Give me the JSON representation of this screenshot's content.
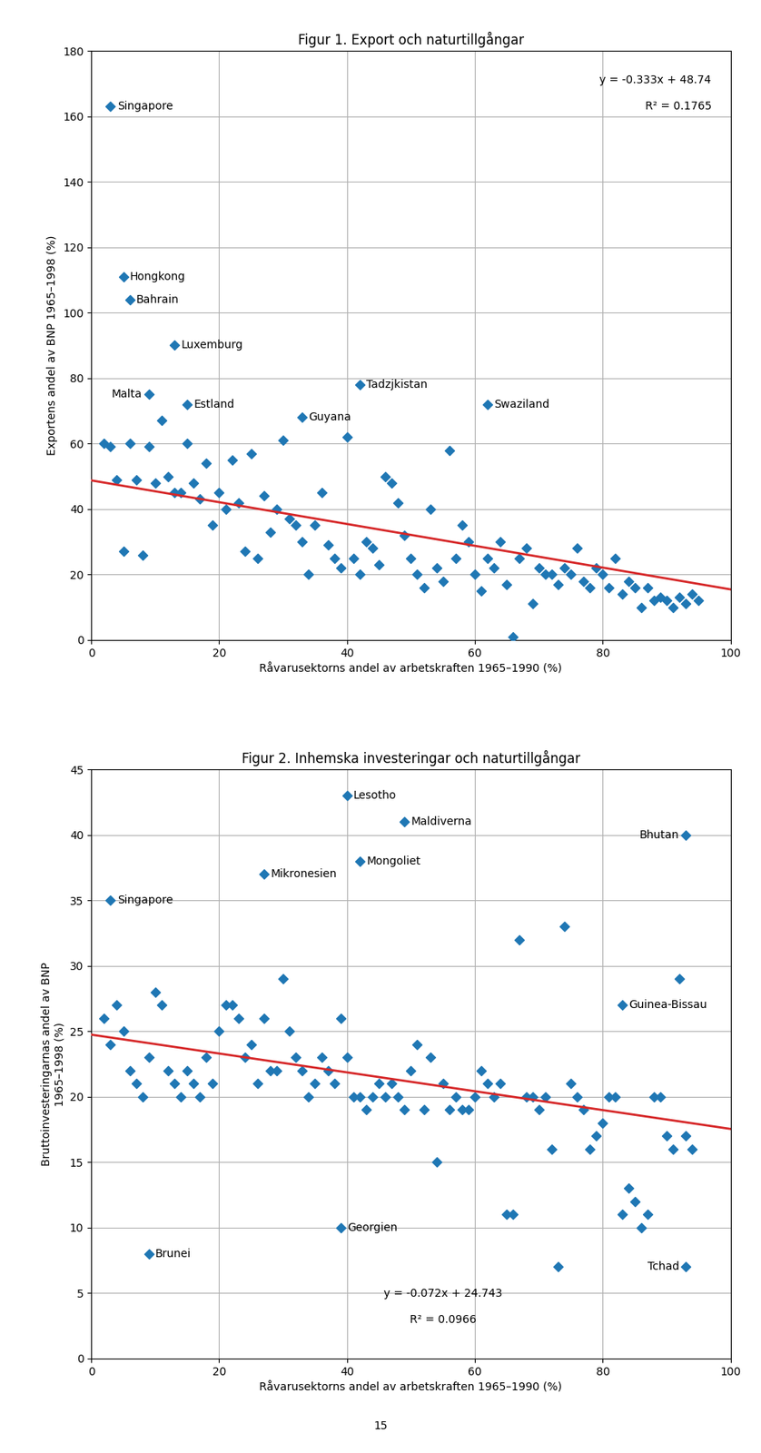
{
  "chart_data": [
    {
      "type": "scatter",
      "title": "Figur 1. Export och naturtillgångar",
      "x_label": "Råvarusektorns andel av arbetskraften 1965–1990 (%)",
      "y_label": "Exportens andel av BNP 1965–1998 (%)",
      "xlim": [
        0,
        100
      ],
      "ylim": [
        0,
        180
      ],
      "xticks": [
        0,
        20,
        40,
        60,
        80,
        100
      ],
      "yticks": [
        0,
        20,
        40,
        60,
        80,
        100,
        120,
        140,
        160,
        180
      ],
      "grid": true,
      "series": [
        {
          "type": "scatter",
          "color": "#1f77b4",
          "marker": "diamond",
          "x": [
            2,
            3,
            4,
            5,
            6,
            7,
            8,
            9,
            10,
            11,
            12,
            13,
            14,
            15,
            16,
            17,
            18,
            19,
            20,
            21,
            22,
            23,
            24,
            25,
            26,
            27,
            28,
            29,
            30,
            31,
            32,
            33,
            34,
            35,
            36,
            37,
            38,
            39,
            40,
            41,
            42,
            43,
            44,
            45,
            46,
            47,
            48,
            49,
            50,
            51,
            52,
            53,
            54,
            55,
            56,
            57,
            58,
            59,
            60,
            61,
            62,
            63,
            64,
            65,
            66,
            67,
            68,
            69,
            70,
            71,
            72,
            73,
            74,
            75,
            76,
            77,
            78,
            79,
            80,
            81,
            82,
            83,
            84,
            85,
            86,
            87,
            88,
            89,
            90,
            91,
            92,
            93,
            94,
            95
          ],
          "values": [
            60,
            59,
            49,
            27,
            60,
            49,
            26,
            59,
            48,
            67,
            50,
            45,
            45,
            60,
            48,
            43,
            54,
            35,
            45,
            40,
            55,
            42,
            27,
            57,
            25,
            44,
            33,
            40,
            61,
            37,
            35,
            30,
            20,
            35,
            45,
            29,
            25,
            22,
            62,
            25,
            20,
            30,
            28,
            23,
            50,
            48,
            42,
            32,
            25,
            20,
            16,
            40,
            22,
            18,
            58,
            25,
            35,
            30,
            20,
            15,
            25,
            22,
            30,
            17,
            1,
            25,
            28,
            11,
            22,
            20,
            20,
            17,
            22,
            20,
            28,
            18,
            16,
            22,
            20,
            16,
            25,
            14,
            18,
            16,
            10,
            16,
            12,
            13,
            12,
            10,
            13,
            11,
            14,
            12
          ]
        },
        {
          "type": "scatter",
          "color": "#1f77b4",
          "marker": "diamond",
          "x": [
            3,
            5,
            6,
            13,
            9,
            15,
            33,
            42,
            62
          ],
          "values": [
            163,
            111,
            104,
            90,
            75,
            72,
            68,
            78,
            72
          ],
          "point_labels": [
            "Singapore",
            "Hongkong",
            "Bahrain",
            "Luxemburg",
            "Malta",
            "Estland",
            "Guyana",
            "Tadzjkistan",
            "Swaziland"
          ]
        },
        {
          "type": "line",
          "color": "#d62728",
          "line_style": "solid",
          "x": [
            0,
            100
          ],
          "values": [
            48.74,
            15.44
          ]
        }
      ],
      "annotations": [
        "y = -0.333x + 48.74",
        "R² = 0.1765"
      ]
    },
    {
      "type": "scatter",
      "title": "Figur 2. Inhemska investeringar och naturtillgångar",
      "x_label": "Råvarusektorns andel av arbetskraften 1965–1990 (%)",
      "y_label": "Bruttoinvesteringarnas andel av BNP\n1965–1998 (%)",
      "xlim": [
        0,
        100
      ],
      "ylim": [
        0,
        45
      ],
      "xticks": [
        0,
        20,
        40,
        60,
        80,
        100
      ],
      "yticks": [
        0,
        5,
        10,
        15,
        20,
        25,
        30,
        35,
        40,
        45
      ],
      "grid": true,
      "series": [
        {
          "type": "scatter",
          "color": "#1f77b4",
          "marker": "diamond",
          "x": [
            2,
            3,
            4,
            5,
            6,
            7,
            8,
            9,
            10,
            11,
            12,
            13,
            14,
            15,
            16,
            17,
            18,
            19,
            20,
            21,
            22,
            23,
            24,
            25,
            26,
            27,
            28,
            29,
            30,
            31,
            32,
            33,
            34,
            35,
            36,
            37,
            38,
            39,
            40,
            41,
            42,
            43,
            44,
            45,
            46,
            47,
            48,
            49,
            50,
            51,
            52,
            53,
            54,
            55,
            56,
            57,
            58,
            59,
            60,
            61,
            62,
            63,
            64,
            65,
            66,
            67,
            68,
            69,
            70,
            71,
            72,
            73,
            74,
            75,
            76,
            77,
            78,
            79,
            80,
            81,
            82,
            83,
            84,
            85,
            86,
            87,
            88,
            89,
            90,
            91,
            92,
            93,
            94
          ],
          "values": [
            26,
            24,
            27,
            25,
            22,
            21,
            20,
            23,
            28,
            27,
            22,
            21,
            20,
            22,
            21,
            20,
            23,
            21,
            25,
            27,
            27,
            26,
            23,
            24,
            21,
            26,
            22,
            22,
            29,
            25,
            23,
            22,
            20,
            21,
            23,
            22,
            21,
            26,
            23,
            20,
            20,
            19,
            20,
            21,
            20,
            21,
            20,
            19,
            22,
            24,
            19,
            23,
            15,
            21,
            19,
            20,
            19,
            19,
            20,
            22,
            21,
            20,
            21,
            11,
            11,
            32,
            20,
            20,
            19,
            20,
            16,
            7,
            33,
            21,
            20,
            19,
            16,
            17,
            18,
            20,
            20,
            11,
            13,
            12,
            10,
            11,
            20,
            20,
            17,
            16,
            29,
            17,
            16
          ]
        },
        {
          "type": "scatter",
          "color": "#1f77b4",
          "marker": "diamond",
          "x": [
            3,
            9,
            27,
            40,
            42,
            49,
            39,
            83,
            93,
            93
          ],
          "values": [
            35,
            8,
            37,
            43,
            38,
            41,
            10,
            27,
            40,
            7
          ],
          "point_labels": [
            "Singapore",
            "Brunei",
            "Mikronesien",
            "Lesotho",
            "Mongoliet",
            "Maldiverna",
            "Georgien",
            "Guinea-Bissau",
            "Bhutan",
            "Tchad"
          ]
        },
        {
          "type": "line",
          "color": "#d62728",
          "line_style": "solid",
          "x": [
            0,
            100
          ],
          "values": [
            24.743,
            17.543
          ]
        }
      ],
      "annotations": [
        "y = -0.072x + 24.743",
        "R² = 0.0966"
      ]
    }
  ],
  "footer": "15"
}
